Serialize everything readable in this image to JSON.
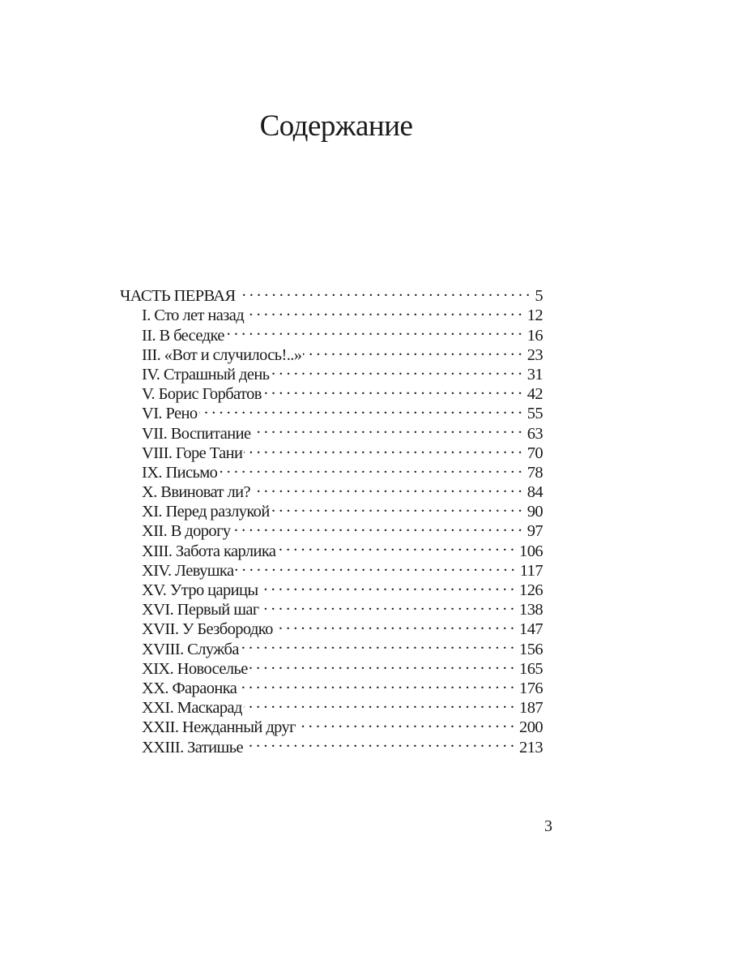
{
  "title": "Содержание",
  "toc": [
    {
      "label": "ЧАСТЬ ПЕРВАЯ",
      "page": "5",
      "level": 0
    },
    {
      "label": "I. Сто лет назад",
      "page": "12",
      "level": 1
    },
    {
      "label": "II. В беседке",
      "page": "16",
      "level": 1
    },
    {
      "label": "III. «Вот и случилось!..»",
      "page": "23",
      "level": 1
    },
    {
      "label": "IV. Страшный день",
      "page": "31",
      "level": 1
    },
    {
      "label": "V. Борис Горбатов",
      "page": "42",
      "level": 1
    },
    {
      "label": "VI. Рено",
      "page": "55",
      "level": 1
    },
    {
      "label": "VII. Воспитание",
      "page": "63",
      "level": 1
    },
    {
      "label": "VIII. Горе Тани",
      "page": "70",
      "level": 1
    },
    {
      "label": "IX. Письмо",
      "page": "78",
      "level": 1
    },
    {
      "label": "X. Ввиноват ли?",
      "page": "84",
      "level": 1
    },
    {
      "label": "XI. Перед разлукой",
      "page": "90",
      "level": 1
    },
    {
      "label": "XII. В дорогу",
      "page": "97",
      "level": 1
    },
    {
      "label": "XIII. Забота карлика",
      "page": "106",
      "level": 1
    },
    {
      "label": "XIV. Левушка",
      "page": "117",
      "level": 1
    },
    {
      "label": "XV. Утро царицы",
      "page": "126",
      "level": 1
    },
    {
      "label": "XVI. Первый шаг",
      "page": "138",
      "level": 1
    },
    {
      "label": "XVII. У Безбородко",
      "page": "147",
      "level": 1
    },
    {
      "label": "XVIII. Служба",
      "page": "156",
      "level": 1
    },
    {
      "label": "XIX. Новоселье",
      "page": "165",
      "level": 1
    },
    {
      "label": "XX. Фараонка",
      "page": "176",
      "level": 1
    },
    {
      "label": "XXI. Маскарад",
      "page": "187",
      "level": 1
    },
    {
      "label": "XXII. Нежданный друг",
      "page": "200",
      "level": 1
    },
    {
      "label": "XXIII. Затишье",
      "page": "213",
      "level": 1
    }
  ],
  "page_number": "3"
}
